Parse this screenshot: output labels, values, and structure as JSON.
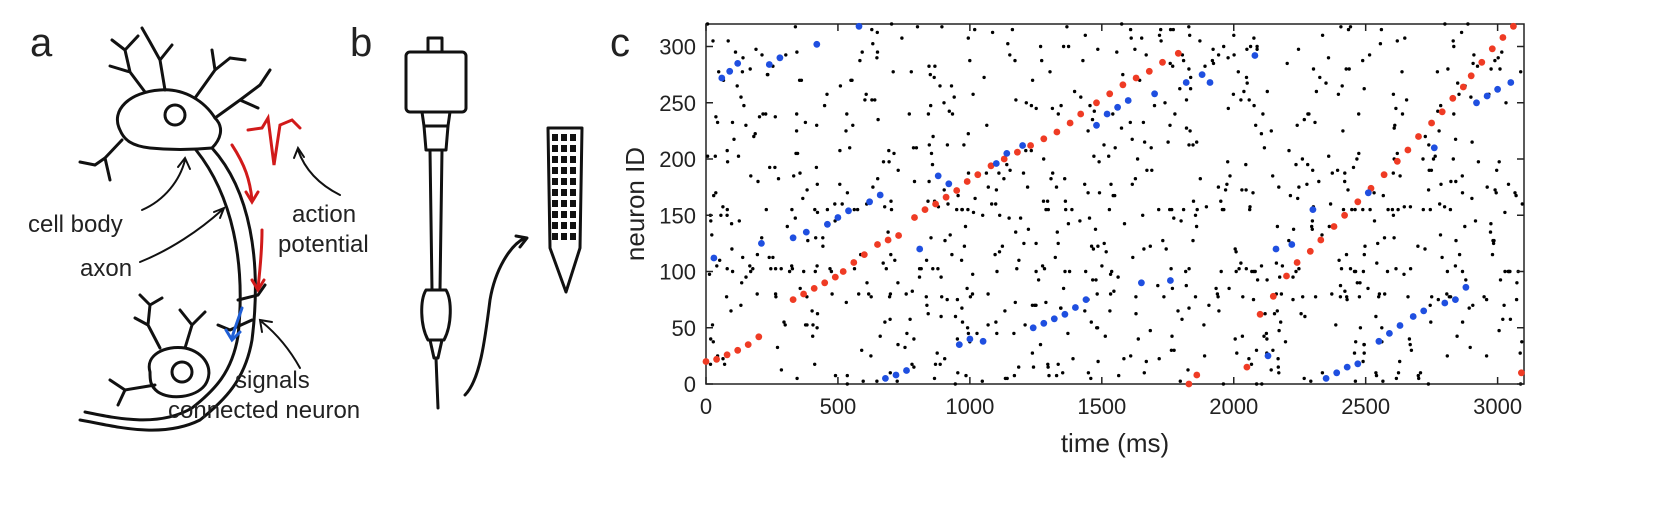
{
  "panels": {
    "a": {
      "letter": "a",
      "labels": {
        "cell_body": "cell body",
        "axon": "axon",
        "action_potential_1": "action",
        "action_potential_2": "potential",
        "signals_1": "signals",
        "signals_2": "connected neuron"
      },
      "colors": {
        "drawing": "#111111",
        "signal": "#d11a1a",
        "synapse": "#1f5fd6"
      }
    },
    "b": {
      "letter": "b"
    },
    "c": {
      "letter": "c"
    }
  },
  "chart_data": {
    "type": "scatter",
    "xlabel": "time (ms)",
    "ylabel": "neuron ID",
    "xlim": [
      0,
      3100
    ],
    "ylim": [
      0,
      320
    ],
    "xticks": [
      0,
      500,
      1000,
      1500,
      2000,
      2500,
      3000
    ],
    "yticks": [
      0,
      50,
      100,
      150,
      200,
      250,
      300
    ],
    "grid": false,
    "colors": {
      "background": "#000000",
      "red": "#ef3b24",
      "blue": "#1f4fe0"
    },
    "series": [
      {
        "color": "red",
        "points": [
          [
            0,
            20
          ],
          [
            40,
            22
          ],
          [
            80,
            26
          ],
          [
            120,
            30
          ],
          [
            160,
            35
          ],
          [
            200,
            42
          ],
          [
            330,
            75
          ],
          [
            370,
            80
          ],
          [
            410,
            85
          ],
          [
            450,
            90
          ],
          [
            490,
            95
          ],
          [
            520,
            100
          ],
          [
            560,
            108
          ],
          [
            600,
            115
          ],
          [
            650,
            124
          ],
          [
            690,
            128
          ],
          [
            730,
            132
          ],
          [
            790,
            148
          ],
          [
            830,
            155
          ],
          [
            870,
            160
          ],
          [
            910,
            166
          ],
          [
            950,
            172
          ],
          [
            990,
            180
          ],
          [
            1030,
            186
          ],
          [
            1080,
            194
          ],
          [
            1130,
            200
          ],
          [
            1180,
            206
          ],
          [
            1230,
            212
          ],
          [
            1280,
            218
          ],
          [
            1330,
            224
          ],
          [
            1380,
            232
          ],
          [
            1420,
            240
          ],
          [
            1480,
            250
          ],
          [
            1530,
            258
          ],
          [
            1580,
            266
          ],
          [
            1630,
            272
          ],
          [
            1680,
            278
          ],
          [
            1730,
            286
          ],
          [
            1790,
            294
          ],
          [
            1830,
            0
          ],
          [
            1860,
            8
          ],
          [
            2050,
            15
          ],
          [
            2100,
            62
          ],
          [
            2150,
            78
          ],
          [
            2200,
            96
          ],
          [
            2240,
            108
          ],
          [
            2290,
            118
          ],
          [
            2330,
            128
          ],
          [
            2380,
            140
          ],
          [
            2420,
            150
          ],
          [
            2470,
            162
          ],
          [
            2520,
            174
          ],
          [
            2570,
            186
          ],
          [
            2620,
            198
          ],
          [
            2660,
            208
          ],
          [
            2700,
            220
          ],
          [
            2750,
            232
          ],
          [
            2790,
            242
          ],
          [
            2830,
            254
          ],
          [
            2870,
            264
          ],
          [
            2900,
            274
          ],
          [
            2940,
            286
          ],
          [
            2980,
            298
          ],
          [
            3020,
            308
          ],
          [
            3060,
            318
          ],
          [
            3090,
            10
          ]
        ]
      },
      {
        "color": "blue",
        "points": [
          [
            30,
            112
          ],
          [
            60,
            272
          ],
          [
            90,
            278
          ],
          [
            120,
            285
          ],
          [
            210,
            125
          ],
          [
            240,
            284
          ],
          [
            280,
            290
          ],
          [
            330,
            130
          ],
          [
            380,
            135
          ],
          [
            420,
            302
          ],
          [
            460,
            142
          ],
          [
            500,
            148
          ],
          [
            540,
            154
          ],
          [
            580,
            318
          ],
          [
            620,
            162
          ],
          [
            660,
            168
          ],
          [
            680,
            5
          ],
          [
            720,
            8
          ],
          [
            760,
            12
          ],
          [
            810,
            120
          ],
          [
            880,
            185
          ],
          [
            920,
            178
          ],
          [
            960,
            35
          ],
          [
            1000,
            40
          ],
          [
            1050,
            38
          ],
          [
            1100,
            196
          ],
          [
            1140,
            205
          ],
          [
            1200,
            212
          ],
          [
            1240,
            50
          ],
          [
            1280,
            54
          ],
          [
            1320,
            58
          ],
          [
            1360,
            62
          ],
          [
            1400,
            68
          ],
          [
            1440,
            75
          ],
          [
            1480,
            230
          ],
          [
            1520,
            240
          ],
          [
            1560,
            246
          ],
          [
            1600,
            252
          ],
          [
            1650,
            90
          ],
          [
            1700,
            258
          ],
          [
            1760,
            92
          ],
          [
            1820,
            268
          ],
          [
            1880,
            275
          ],
          [
            1910,
            268
          ],
          [
            2080,
            292
          ],
          [
            2130,
            25
          ],
          [
            2160,
            120
          ],
          [
            2220,
            124
          ],
          [
            2300,
            155
          ],
          [
            2350,
            5
          ],
          [
            2390,
            10
          ],
          [
            2430,
            15
          ],
          [
            2470,
            18
          ],
          [
            2510,
            170
          ],
          [
            2550,
            38
          ],
          [
            2590,
            45
          ],
          [
            2630,
            52
          ],
          [
            2680,
            60
          ],
          [
            2720,
            65
          ],
          [
            2760,
            210
          ],
          [
            2800,
            72
          ],
          [
            2840,
            75
          ],
          [
            2880,
            86
          ],
          [
            2920,
            250
          ],
          [
            2960,
            256
          ],
          [
            3000,
            262
          ],
          [
            3050,
            268
          ]
        ]
      }
    ]
  }
}
